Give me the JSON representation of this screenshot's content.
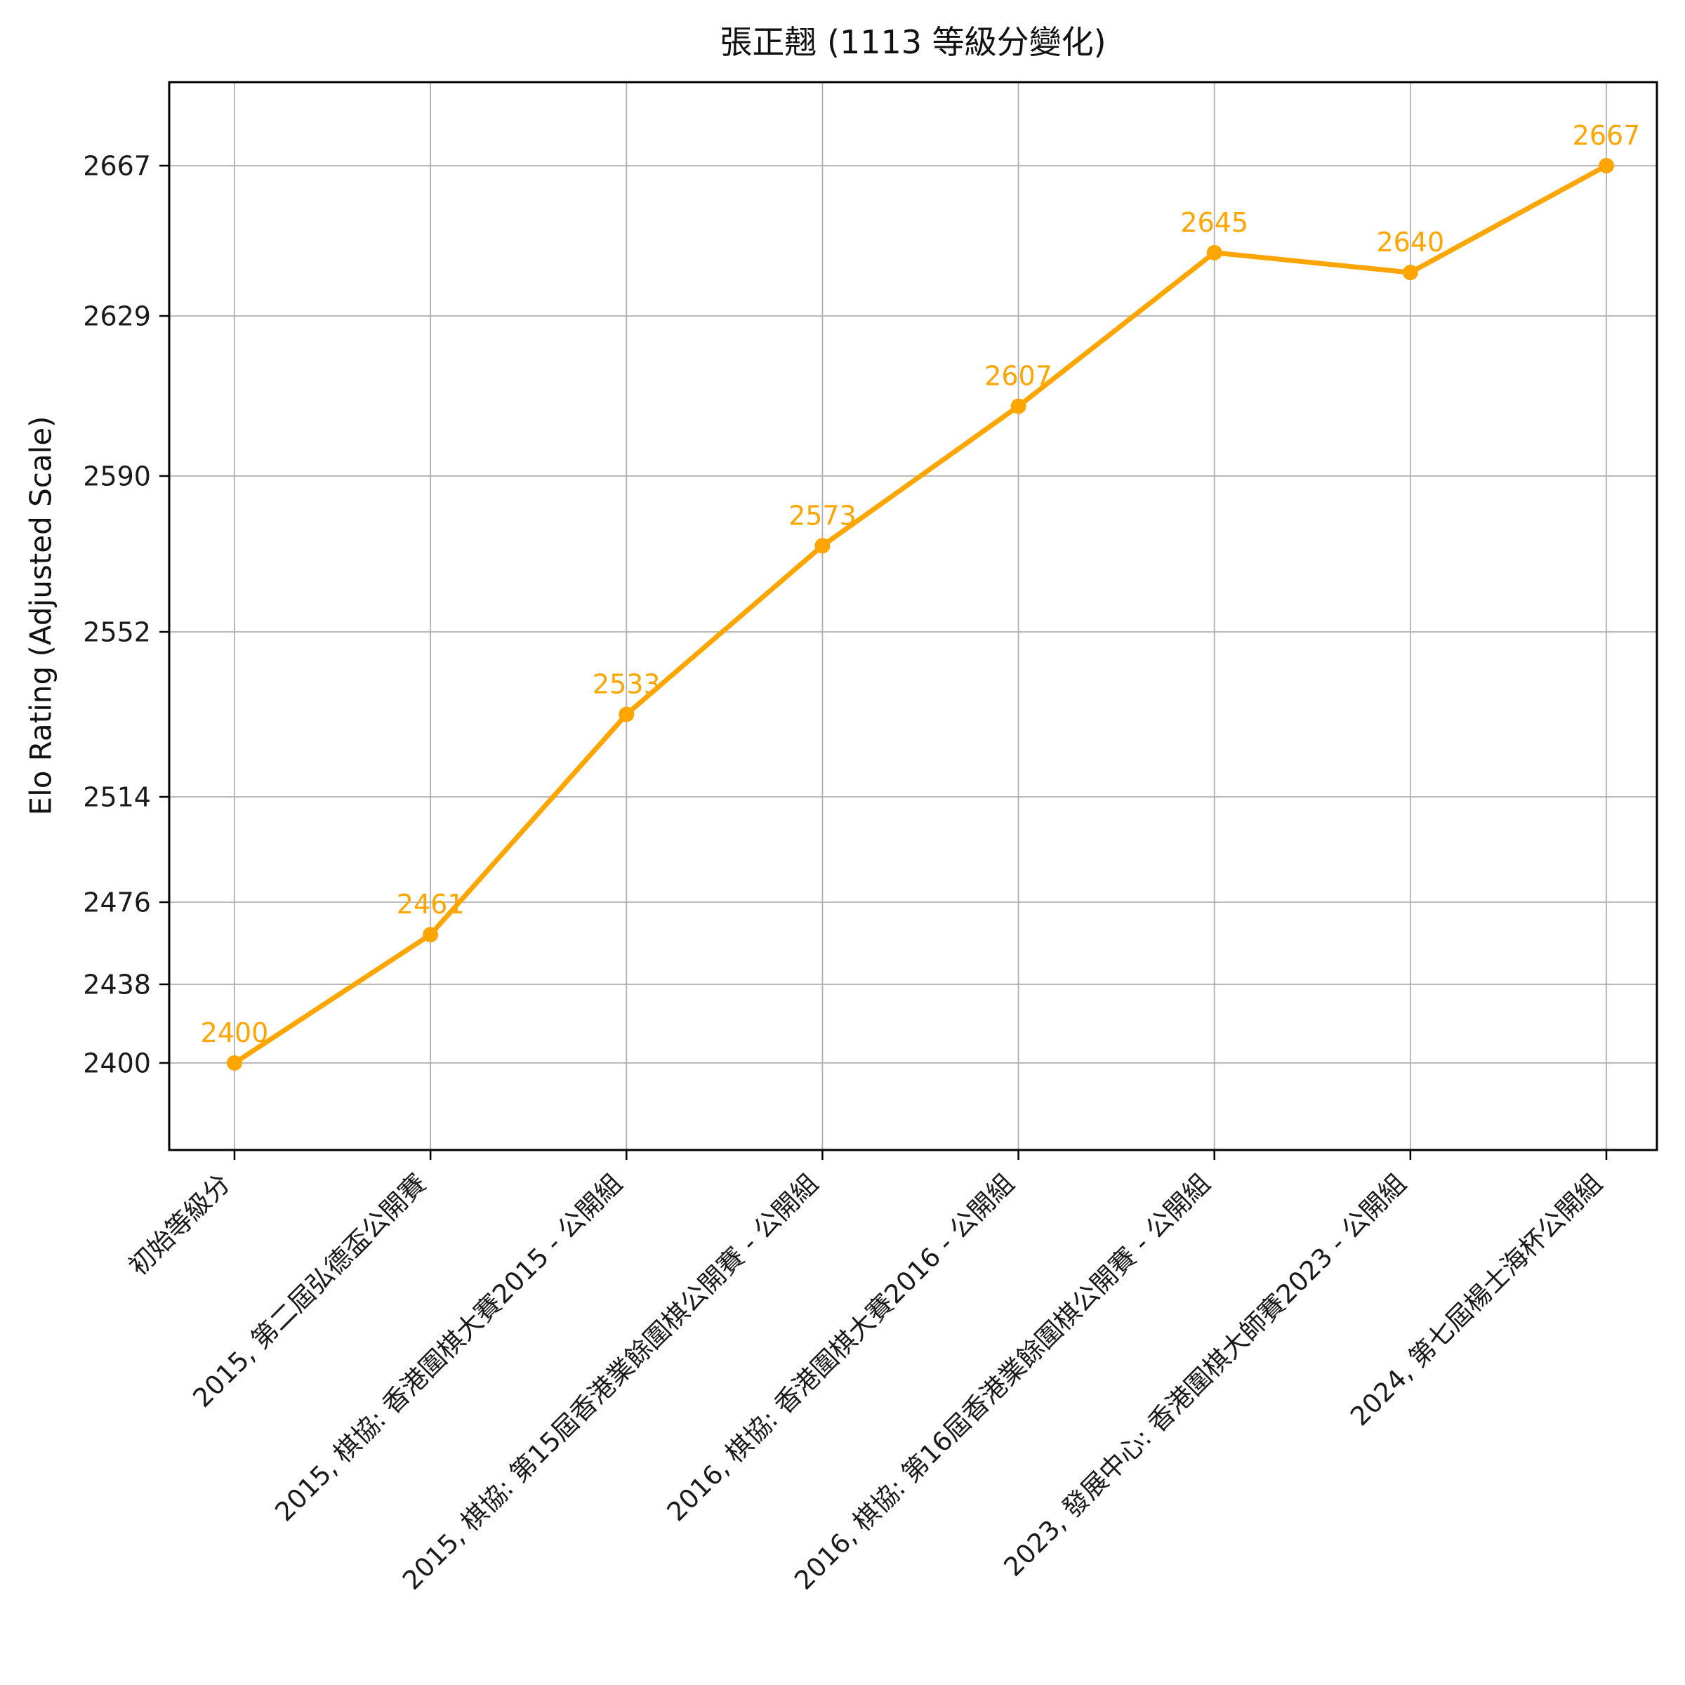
{
  "chart_data": {
    "type": "line",
    "title": "張正翹 (1113 等級分變化)",
    "ylabel": "Elo Rating (Adjusted Scale)",
    "xlabel": "",
    "categories": [
      "初始等級分",
      "2015, 第二屆弘德盃公開賽",
      "2015, 棋協: 香港圍棋大賽2015 - 公開組",
      "2015, 棋協: 第15屆香港業餘圍棋公開賽 - 公開組",
      "2016, 棋協: 香港圍棋大賽2016 - 公開組",
      "2016, 棋協: 第16屆香港業餘圍棋公開賽 - 公開組",
      "2023, 發展中心: 香港圍棋大師賽2023 - 公開組",
      "2024, 第七屆楊士海杯公開組"
    ],
    "values": [
      2400,
      2461,
      2533,
      2573,
      2607,
      2645,
      2640,
      2667
    ],
    "point_labels": [
      "2400",
      "2461",
      "2533",
      "2573",
      "2607",
      "2645",
      "2640",
      "2667"
    ],
    "yticks": [
      2400,
      2438,
      2476,
      2514,
      2552,
      2590,
      2629,
      2667
    ],
    "y_scale": "nonlinear-adjusted",
    "grid": true,
    "legend": "none",
    "line_color": "#FFA500",
    "marker": "circle",
    "series_name": "Elo Rating"
  }
}
